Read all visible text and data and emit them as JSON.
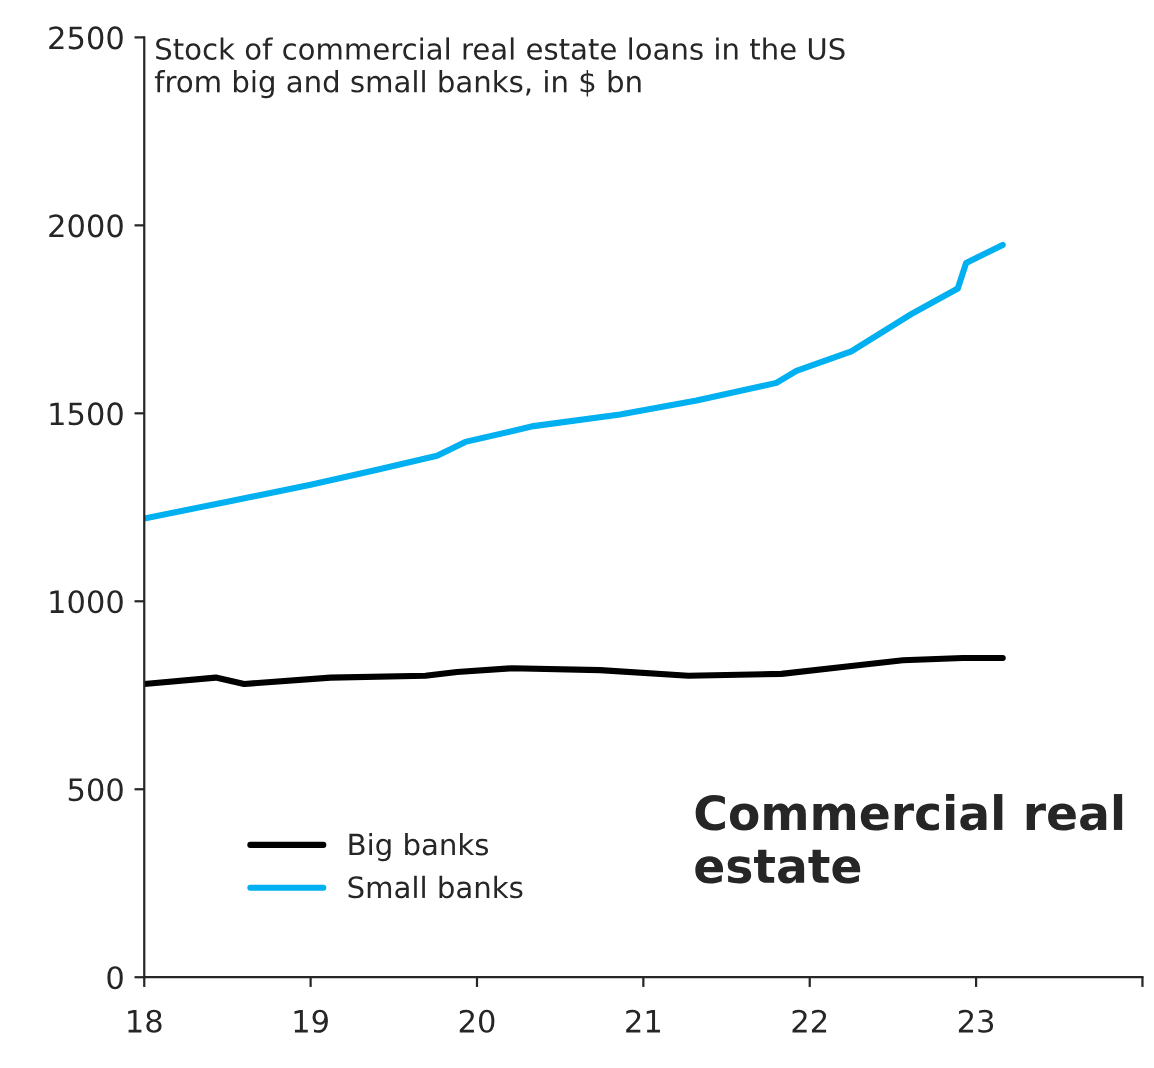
{
  "chart_data": {
    "type": "line",
    "title": "Stock of commercial real estate loans in the US\nfrom big and small banks, in $ bn",
    "annotations": [
      "Commercial real\nestate"
    ],
    "xlim": [
      18,
      24
    ],
    "xticks": [
      18,
      19,
      20,
      21,
      22,
      23,
      {
        "value": 24,
        "label": null
      }
    ],
    "ylim": [
      0,
      2500
    ],
    "yticks": [
      0,
      500,
      1000,
      1500,
      2000,
      2500
    ],
    "grid": false,
    "legend": "bottom left",
    "line_style": "solid",
    "marker": "none",
    "series": [
      {
        "name": "Big banks",
        "color": "#000000",
        "x": [
          18,
          18.43,
          18.6,
          19.12,
          19.69,
          19.88,
          20.21,
          20.74,
          21.27,
          21.83,
          22.25,
          22.56,
          22.92,
          23.16
        ],
        "values": [
          780,
          797,
          780,
          797,
          802,
          812,
          822,
          817,
          802,
          807,
          828,
          843,
          849,
          849
        ]
      },
      {
        "name": "Small banks",
        "color": "#00b0f0",
        "x": [
          18,
          18.5,
          19,
          19.4,
          19.76,
          19.93,
          20.34,
          20.86,
          21.32,
          21.8,
          21.92,
          22.25,
          22.61,
          22.89,
          22.94,
          23.16
        ],
        "values": [
          1220,
          1265,
          1310,
          1350,
          1387,
          1424,
          1466,
          1497,
          1534,
          1581,
          1613,
          1665,
          1764,
          1832,
          1900,
          1948
        ]
      }
    ]
  }
}
